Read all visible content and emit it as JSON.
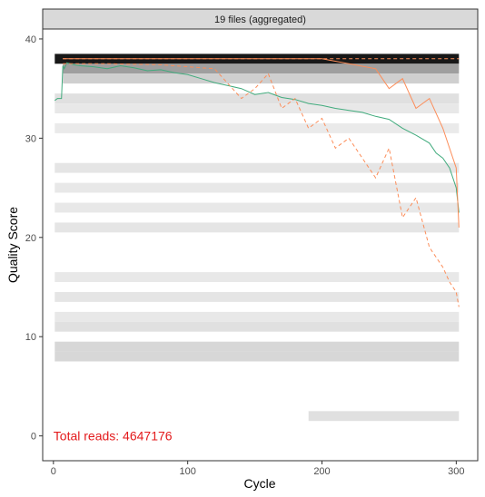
{
  "chart_data": {
    "type": "heatmap",
    "facet_title": "19 files (aggregated)",
    "xlabel": "Cycle",
    "ylabel": "Quality Score",
    "xlim": [
      -8,
      316
    ],
    "ylim": [
      -2.5,
      41
    ],
    "x_ticks": [
      0,
      100,
      200,
      300
    ],
    "y_ticks": [
      0,
      10,
      20,
      30,
      40
    ],
    "annotation": {
      "text": "Total reads: 4647176",
      "x": 0,
      "y": 0,
      "color": "#e31a1c"
    },
    "colors": {
      "mean_line": "#41ab7d",
      "quartile_lines": "#fc8d59",
      "heat_dark": "#000000",
      "heat_light": "#f4f4f4",
      "strip_fill": "#d9d9d9",
      "panel_border": "#333333"
    },
    "heatmap_bands": [
      {
        "q": 38,
        "x": [
          1,
          302
        ],
        "shade": 0.9
      },
      {
        "q": 37,
        "x": [
          7,
          302
        ],
        "shade": 0.35
      },
      {
        "q": 36,
        "x": [
          7,
          302
        ],
        "shade": 0.15
      },
      {
        "q": 34,
        "x": [
          1,
          302
        ],
        "shade": 0.08
      },
      {
        "q": 33,
        "x": [
          1,
          302
        ],
        "shade": 0.05
      },
      {
        "q": 31,
        "x": [
          1,
          302
        ],
        "shade": 0.04
      },
      {
        "q": 27,
        "x": [
          1,
          302
        ],
        "shade": 0.06
      },
      {
        "q": 25,
        "x": [
          1,
          302
        ],
        "shade": 0.05
      },
      {
        "q": 23,
        "x": [
          1,
          302
        ],
        "shade": 0.05
      },
      {
        "q": 21,
        "x": [
          1,
          302
        ],
        "shade": 0.06
      },
      {
        "q": 16,
        "x": [
          1,
          302
        ],
        "shade": 0.05
      },
      {
        "q": 14,
        "x": [
          1,
          302
        ],
        "shade": 0.06
      },
      {
        "q": 12,
        "x": [
          1,
          302
        ],
        "shade": 0.05
      },
      {
        "q": 11,
        "x": [
          1,
          302
        ],
        "shade": 0.08
      },
      {
        "q": 9,
        "x": [
          1,
          302
        ],
        "shade": 0.12
      },
      {
        "q": 8,
        "x": [
          1,
          302
        ],
        "shade": 0.12
      },
      {
        "q": 2,
        "x": [
          190,
          302
        ],
        "shade": 0.08
      }
    ],
    "series": [
      {
        "stat": "mean",
        "x": [
          1,
          2,
          3,
          4,
          5,
          6,
          7,
          8,
          10,
          15,
          20,
          30,
          40,
          50,
          60,
          70,
          80,
          90,
          100,
          110,
          120,
          130,
          140,
          150,
          160,
          170,
          180,
          190,
          200,
          210,
          220,
          230,
          240,
          250,
          260,
          270,
          280,
          285,
          290,
          295,
          300,
          302
        ],
        "y": [
          33.8,
          33.9,
          34.0,
          34.0,
          34.0,
          34.0,
          37.3,
          37.0,
          37.6,
          37.4,
          37.3,
          37.2,
          37.0,
          37.3,
          37.1,
          36.8,
          36.9,
          36.6,
          36.4,
          36.0,
          35.6,
          35.3,
          35.0,
          34.4,
          34.6,
          34.1,
          33.9,
          33.5,
          33.3,
          33.0,
          32.8,
          32.6,
          32.2,
          31.9,
          31.0,
          30.3,
          29.5,
          28.5,
          28.0,
          27.0,
          25.0,
          22.5
        ]
      },
      {
        "stat": "quartile_25",
        "x": [
          7,
          40,
          80,
          100,
          120,
          140,
          150,
          160,
          170,
          180,
          190,
          200,
          210,
          220,
          230,
          240,
          250,
          260,
          270,
          280,
          290,
          295,
          300,
          302
        ],
        "y": [
          37.5,
          37.5,
          37.4,
          37.2,
          37.0,
          34.0,
          35.0,
          36.5,
          33.0,
          34.0,
          31.0,
          32.0,
          29.0,
          30.0,
          28.0,
          26.0,
          29.0,
          22.0,
          24.0,
          19.0,
          17.0,
          15.5,
          14.5,
          13.0
        ]
      },
      {
        "stat": "median",
        "x": [
          7,
          50,
          100,
          150,
          200,
          220,
          240,
          250,
          260,
          270,
          280,
          290,
          300,
          302
        ],
        "y": [
          38.0,
          38.0,
          38.0,
          38.0,
          38.0,
          37.5,
          37.0,
          35.0,
          36.0,
          33.0,
          34.0,
          31.0,
          27.0,
          21.0
        ]
      },
      {
        "stat": "quartile_75",
        "x": [
          7,
          302
        ],
        "y": [
          38.0,
          38.0
        ]
      }
    ]
  }
}
